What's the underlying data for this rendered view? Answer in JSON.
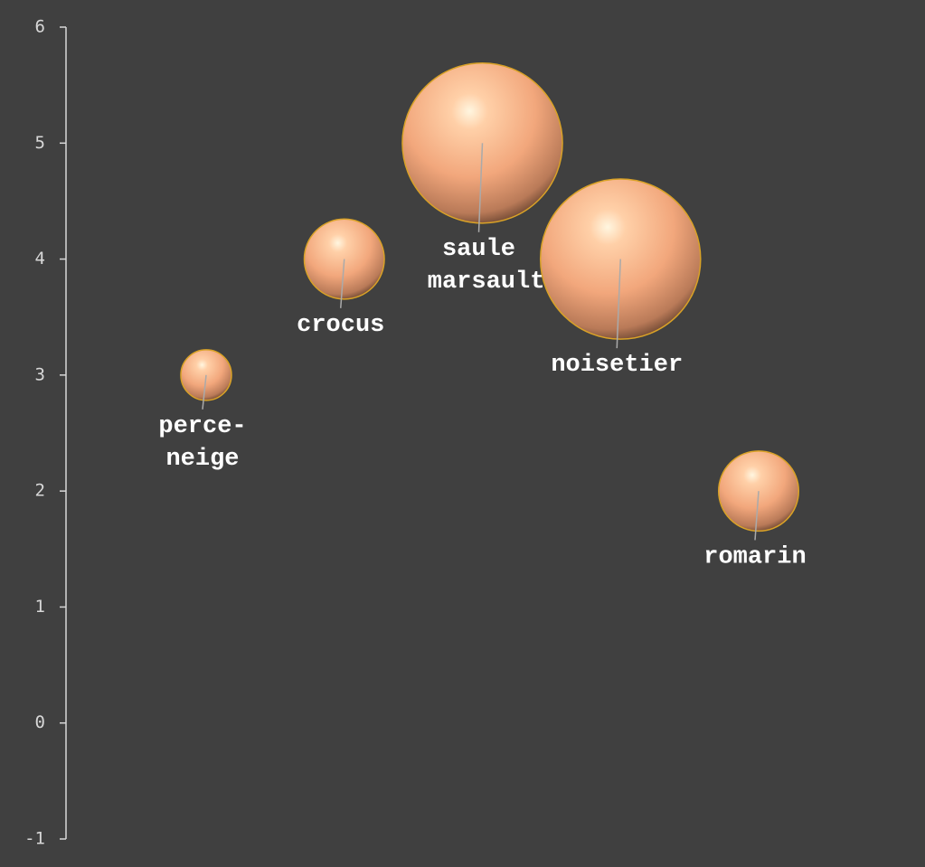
{
  "chart_data": {
    "type": "bubble",
    "categories": [
      "perce-neige",
      "crocus",
      "saule marsault",
      "noisetier",
      "romarin"
    ],
    "values": [
      3,
      4,
      5,
      4,
      2
    ],
    "sizes": [
      1,
      2.5,
      10,
      10,
      2.5
    ],
    "color": "#f4a77a",
    "ylim": [
      -1,
      6
    ],
    "yticks": [
      -1,
      0,
      1,
      2,
      3,
      4,
      5,
      6
    ]
  }
}
